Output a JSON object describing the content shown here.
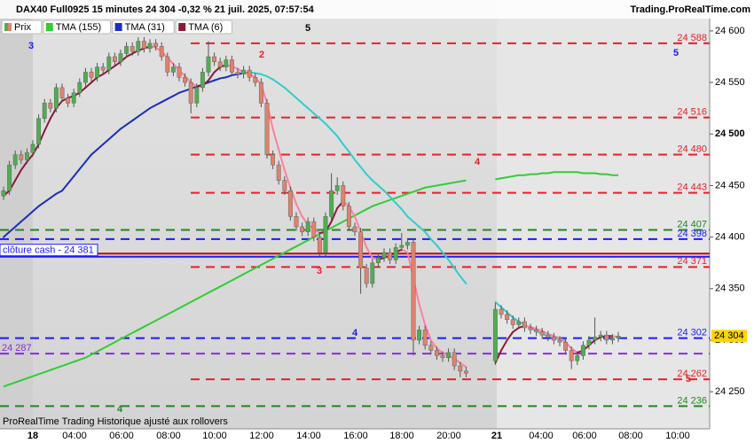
{
  "chart_data": {
    "type": "candlestick",
    "title": "DAX40 Full0925 15 minutes 24 304 -0,32 % 21 juil. 2025, 07:57:54",
    "source": "Trading.ProRealTime.com",
    "footer": "ProRealTime Trading  Historique ajusté aux rollovers",
    "price_name": "Prix",
    "up_color": "#4fae4f",
    "down_color": "#e0826c",
    "ylim": [
      24214,
      24630
    ],
    "yticks": [
      {
        "value": 24600,
        "label": "24 600"
      },
      {
        "value": 24550,
        "label": "24 550"
      },
      {
        "value": 24500,
        "label": "24 500"
      },
      {
        "value": 24450,
        "label": "24 450"
      },
      {
        "value": 24400,
        "label": "24 400"
      },
      {
        "value": 24350,
        "label": "24 350"
      },
      {
        "value": 24300,
        "label": "24 300"
      },
      {
        "value": 24250,
        "label": "24 250"
      }
    ],
    "x_labels": [
      "18",
      "04:00",
      "06:00",
      "08:00",
      "10:00",
      "12:00",
      "14:00",
      "16:00",
      "18:00",
      "20:00",
      "21",
      "04:00",
      "06:00",
      "08:00",
      "10:00"
    ],
    "candles": [
      [
        24440,
        24449,
        24436,
        24445
      ],
      [
        24445,
        24474,
        24441,
        24470
      ],
      [
        24470,
        24484,
        24466,
        24480
      ],
      [
        24480,
        24484,
        24471,
        24475
      ],
      [
        24475,
        24486,
        24471,
        24482
      ],
      [
        24482,
        24494,
        24478,
        24490
      ],
      [
        24490,
        24519,
        24486,
        24515
      ],
      [
        24515,
        24534,
        24511,
        24530
      ],
      [
        24530,
        24534,
        24521,
        24525
      ],
      [
        24525,
        24549,
        24521,
        24545
      ],
      [
        24545,
        24549,
        24531,
        24535
      ],
      [
        24535,
        24539,
        24526,
        24530
      ],
      [
        24530,
        24544,
        24526,
        24540
      ],
      [
        24540,
        24554,
        24536,
        24550
      ],
      [
        24550,
        24564,
        24546,
        24560
      ],
      [
        24560,
        24564,
        24551,
        24555
      ],
      [
        24555,
        24569,
        24551,
        24565
      ],
      [
        24565,
        24569,
        24558,
        24562
      ],
      [
        24562,
        24579,
        24558,
        24575
      ],
      [
        24575,
        24579,
        24566,
        24570
      ],
      [
        24570,
        24582,
        24566,
        24578
      ],
      [
        24578,
        24589,
        24574,
        24585
      ],
      [
        24585,
        24589,
        24576,
        24580
      ],
      [
        24580,
        24594,
        24576,
        24590
      ],
      [
        24590,
        24594,
        24579,
        24583
      ],
      [
        24583,
        24592,
        24579,
        24588
      ],
      [
        24588,
        24592,
        24581,
        24585
      ],
      [
        24585,
        24589,
        24571,
        24575
      ],
      [
        24575,
        24579,
        24556,
        24560
      ],
      [
        24560,
        24569,
        24556,
        24565
      ],
      [
        24565,
        24569,
        24551,
        24555
      ],
      [
        24555,
        24559,
        24546,
        24550
      ],
      [
        24550,
        24554,
        24520,
        24530
      ],
      [
        24530,
        24549,
        24526,
        24545
      ],
      [
        24545,
        24564,
        24541,
        24560
      ],
      [
        24560,
        24590,
        24556,
        24575
      ],
      [
        24575,
        24579,
        24566,
        24570
      ],
      [
        24570,
        24574,
        24561,
        24565
      ],
      [
        24565,
        24576,
        24561,
        24572
      ],
      [
        24572,
        24576,
        24556,
        24560
      ],
      [
        24560,
        24564,
        24554,
        24558
      ],
      [
        24558,
        24566,
        24554,
        24562
      ],
      [
        24562,
        24566,
        24551,
        24555
      ],
      [
        24555,
        24559,
        24546,
        24550
      ],
      [
        24550,
        24554,
        24526,
        24530
      ],
      [
        24530,
        24534,
        24476,
        24480
      ],
      [
        24480,
        24484,
        24466,
        24470
      ],
      [
        24470,
        24474,
        24451,
        24455
      ],
      [
        24455,
        24459,
        24441,
        24445
      ],
      [
        24445,
        24449,
        24416,
        24420
      ],
      [
        24420,
        24424,
        24406,
        24410
      ],
      [
        24410,
        24414,
        24401,
        24405
      ],
      [
        24405,
        24419,
        24401,
        24415
      ],
      [
        24415,
        24419,
        24396,
        24400
      ],
      [
        24400,
        24404,
        24381,
        24385
      ],
      [
        24385,
        24424,
        24381,
        24420
      ],
      [
        24420,
        24462,
        24416,
        24445
      ],
      [
        24445,
        24458,
        24441,
        24450
      ],
      [
        24450,
        24454,
        24426,
        24430
      ],
      [
        24430,
        24434,
        24406,
        24410
      ],
      [
        24410,
        24414,
        24401,
        24405
      ],
      [
        24405,
        24409,
        24345,
        24370
      ],
      [
        24370,
        24374,
        24351,
        24355
      ],
      [
        24355,
        24379,
        24351,
        24375
      ],
      [
        24375,
        24384,
        24371,
        24380
      ],
      [
        24380,
        24389,
        24376,
        24385
      ],
      [
        24385,
        24389,
        24374,
        24378
      ],
      [
        24378,
        24394,
        24374,
        24390
      ],
      [
        24390,
        24404,
        24386,
        24392
      ],
      [
        24392,
        24399,
        24388,
        24395
      ],
      [
        24395,
        24399,
        24285,
        24300
      ],
      [
        24300,
        24314,
        24296,
        24310
      ],
      [
        24310,
        24314,
        24291,
        24295
      ],
      [
        24295,
        24299,
        24286,
        24290
      ],
      [
        24290,
        24294,
        24281,
        24285
      ],
      [
        24285,
        24289,
        24279,
        24283
      ],
      [
        24283,
        24292,
        24279,
        24288
      ],
      [
        24288,
        24292,
        24271,
        24275
      ],
      [
        24275,
        24279,
        24264,
        24270
      ],
      [
        24270,
        24274,
        24264,
        24268
      ],
      null,
      null,
      null,
      null,
      [
        24280,
        24336,
        24276,
        24330
      ],
      [
        24330,
        24334,
        24321,
        24325
      ],
      [
        24325,
        24329,
        24316,
        24320
      ],
      [
        24320,
        24324,
        24311,
        24315
      ],
      [
        24315,
        24322,
        24311,
        24318
      ],
      [
        24318,
        24322,
        24308,
        24312
      ],
      [
        24312,
        24316,
        24306,
        24310
      ],
      [
        24310,
        24314,
        24304,
        24308
      ],
      [
        24308,
        24312,
        24301,
        24305
      ],
      [
        24305,
        24309,
        24299,
        24303
      ],
      [
        24303,
        24307,
        24296,
        24300
      ],
      [
        24300,
        24304,
        24294,
        24298
      ],
      [
        24298,
        24302,
        24286,
        24290
      ],
      [
        24290,
        24294,
        24272,
        24280
      ],
      [
        24280,
        24289,
        24276,
        24285
      ],
      [
        24285,
        24299,
        24281,
        24295
      ],
      [
        24295,
        24304,
        24291,
        24300
      ],
      [
        24300,
        24322,
        24296,
        24303
      ],
      [
        24303,
        24309,
        24299,
        24305
      ],
      [
        24305,
        24309,
        24296,
        24300
      ],
      [
        24300,
        24306,
        24296,
        24302
      ],
      [
        24302,
        24308,
        24298,
        24304
      ]
    ],
    "series": [
      {
        "name": "TMA (155)",
        "color": "#33cc33",
        "color_down": "#33cc33",
        "values": [
          24255,
          24257,
          24259,
          24261,
          24263,
          24265,
          24267,
          24269,
          24271,
          24273,
          24275,
          24277,
          24279,
          24281,
          24283,
          24286,
          24289,
          24292,
          24295,
          24298,
          24301,
          24304,
          24307,
          24310,
          24313,
          24316,
          24319,
          24322,
          24325,
          24328,
          24331,
          24334,
          24337,
          24340,
          24343,
          24346,
          24349,
          24352,
          24355,
          24358,
          24361,
          24364,
          24367,
          24370,
          24373,
          24376,
          24379,
          24382,
          24385,
          24388,
          24391,
          24394,
          24397,
          24400,
          24403,
          24406,
          24409,
          24412,
          24415,
          24418,
          24421,
          24424,
          24427,
          24430,
          24432,
          24434,
          24436,
          24438,
          24440,
          24442,
          24444,
          24446,
          24448,
          24449,
          24450,
          24451,
          24452,
          24453,
          24454,
          24455,
          null,
          null,
          null,
          null,
          24456,
          24457,
          24458,
          24459,
          24460,
          24460,
          24461,
          24461,
          24462,
          24462,
          24463,
          24463,
          24463,
          24463,
          24463,
          24462,
          24462,
          24462,
          24461,
          24461,
          24460,
          24460
        ]
      },
      {
        "name": "TMA (31)",
        "color": "#1a2fbf",
        "color_down": "#33cccc",
        "values": [
          24400,
          24405,
          24410,
          24415,
          24420,
          24425,
          24430,
          24434,
          24438,
          24442,
          24445,
          24452,
          24459,
          24466,
          24473,
          24480,
          24485,
          24490,
          24495,
          24500,
          24505,
          24509,
          24513,
          24517,
          24521,
          24525,
          24528,
          24531,
          24534,
          24537,
          24540,
          24542,
          24544,
          24546,
          24548,
          24550,
          24552,
          24554,
          24555,
          24557,
          24558,
          24559,
          24560,
          24559,
          24558,
          24556,
          24553,
          24549,
          24545,
          24540,
          24535,
          24530,
          24525,
          24520,
          24515,
          24510,
          24504,
          24498,
          24490,
          24483,
          24475,
          24468,
          24461,
          24455,
          24450,
          24445,
          24439,
          24433,
          24427,
          24420,
          24415,
          24410,
          24405,
          24398,
          24392,
          24385,
          24378,
          24370,
          24362,
          24355,
          null,
          null,
          null,
          null,
          24337,
          24332,
          24327,
          24322,
          24318,
          24315,
          24312,
          24309,
          24306,
          24304,
          24302,
          24301,
          24300,
          null,
          null,
          null,
          null,
          null,
          null,
          null,
          null,
          null
        ]
      },
      {
        "name": "TMA (6)",
        "color": "#8b1a3a",
        "color_down": "#ff7fa0",
        "values": [
          24440,
          24445,
          24455,
          24465,
          24473,
          24480,
          24490,
          24503,
          24515,
          24525,
          24532,
          24535,
          24537,
          24540,
          24545,
          24550,
          24555,
          24558,
          24562,
          24566,
          24570,
          24575,
          24578,
          24581,
          24583,
          24585,
          24584,
          24580,
          24574,
          24568,
          24562,
          24556,
          24550,
          24546,
          24547,
          24552,
          24560,
          24565,
          24567,
          24566,
          24563,
          24560,
          24558,
          24555,
          24548,
          24530,
          24505,
          24485,
          24465,
          24448,
          24432,
          24420,
          24412,
          24408,
          24404,
          24405,
          24415,
          24428,
          24435,
          24430,
          24420,
          24405,
          24390,
          24380,
          24378,
          24380,
          24382,
          24385,
          24388,
          24385,
          24360,
          24335,
          24315,
          24300,
          24292,
          24288,
          24285,
          24282,
          24278,
          24274,
          null,
          null,
          null,
          null,
          24278,
          24290,
          24300,
          24308,
          24312,
          24314,
          24313,
          24311,
          24309,
          24306,
          24304,
          24302,
          24298,
          24292,
          24288,
          24290,
          24295,
          24300,
          24303,
          24304,
          24304,
          24303
        ]
      }
    ],
    "levels": [
      {
        "value": 24588,
        "label": "24 588",
        "color": "#e8202a"
      },
      {
        "value": 24516,
        "label": "24 516",
        "color": "#e8202a"
      },
      {
        "value": 24480,
        "label": "24 480",
        "color": "#e8202a"
      },
      {
        "value": 24443,
        "label": "24 443",
        "color": "#e8202a"
      },
      {
        "value": 24407,
        "label": "24 407",
        "color": "#1a8c1a"
      },
      {
        "value": 24398,
        "label": "24 398",
        "color": "#1a1aff"
      },
      {
        "value": 24371,
        "label": "24 371",
        "color": "#e8202a"
      },
      {
        "value": 24302,
        "label": "24 302",
        "color": "#1a1aff"
      },
      {
        "value": 24287,
        "label": "24 287",
        "color": "#8a2be2"
      },
      {
        "value": 24262,
        "label": "24 262",
        "color": "#e8202a"
      },
      {
        "value": 24236,
        "label": "24 236",
        "color": "#1a8c1a"
      }
    ],
    "solid_lines": [
      {
        "value": 24384,
        "color": "#d40000"
      },
      {
        "value": 24381,
        "label": "clôture cash -  24 381",
        "color": "#1a1aff"
      }
    ],
    "last_price": {
      "value": 24304,
      "label": "24 304"
    },
    "annotations": [
      {
        "text": "3",
        "color": "#1a1aff"
      },
      {
        "text": "2",
        "color": "#e8202a"
      },
      {
        "text": "5",
        "color": "#000000"
      },
      {
        "text": "4",
        "color": "#e8202a"
      },
      {
        "text": "3",
        "color": "#e8202a"
      },
      {
        "text": "4",
        "color": "#1a1aff"
      },
      {
        "text": "4",
        "color": "#1a8c1a"
      },
      {
        "text": "5",
        "color": "#1a1aff"
      },
      {
        "text": "5",
        "color": "#e8202a"
      }
    ]
  }
}
